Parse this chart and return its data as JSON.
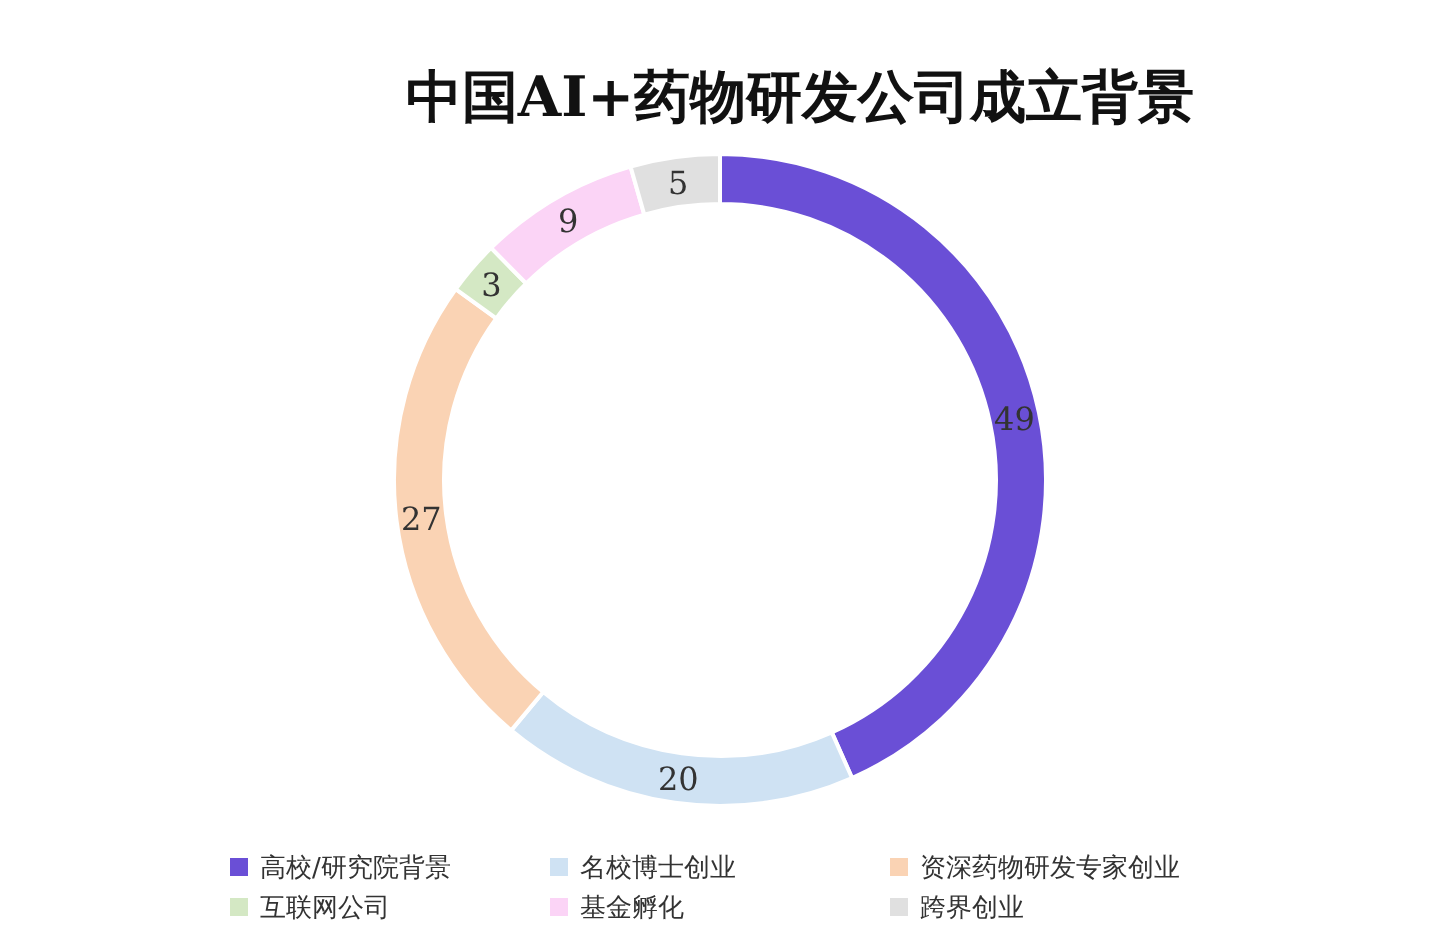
{
  "chart_data": {
    "type": "donut",
    "title": "中国AI+药物研发公司成立背景",
    "categories": [
      "高校/研究院背景",
      "名校博士创业",
      "资深药物研发专家创业",
      "互联网公司",
      "基金孵化",
      "跨界创业"
    ],
    "values": [
      49,
      20,
      27,
      3,
      9,
      5
    ],
    "colors": [
      "#6a4fd6",
      "#cfe2f3",
      "#fad3b4",
      "#d4e8c4",
      "#fbd4f6",
      "#e0e0e0"
    ],
    "data_labels": true,
    "legend": "bottom"
  }
}
